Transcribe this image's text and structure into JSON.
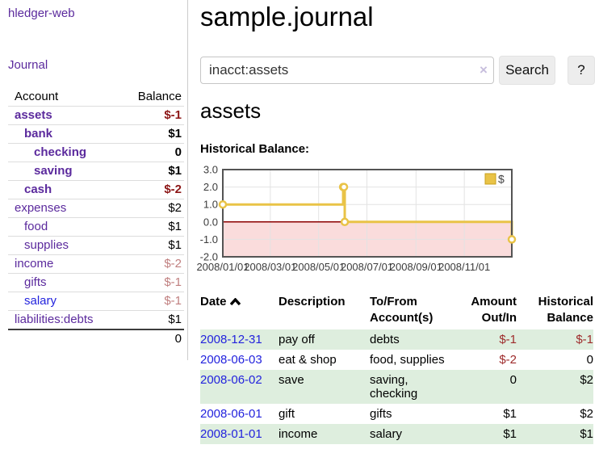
{
  "colors": {
    "accent_purple": "#5b2a9d",
    "link_blue": "#2323dd",
    "negative_strong": "#8c1616",
    "negative_muted": "#c07f7f",
    "negative": "#9e2b2b",
    "row_green": "#deeede",
    "chart_line": "#e9c347",
    "chart_marker_fill": "#ffffff",
    "chart_negative_region": "#fadcdc",
    "chart_zero_line": "#8b0000",
    "chart_border": "#545454",
    "chart_grid": "#e3e3e3",
    "legend_swatch_border": "#c9a21e"
  },
  "sidebar": {
    "brand": "hledger-web",
    "journal_link": "Journal",
    "accounts_table": {
      "headers": {
        "account": "Account",
        "balance": "Balance"
      },
      "rows": [
        {
          "name": "assets",
          "balance": "$-1"
        },
        {
          "name": "bank",
          "balance": "$1"
        },
        {
          "name": "checking",
          "balance": "0"
        },
        {
          "name": "saving",
          "balance": "$1"
        },
        {
          "name": "cash",
          "balance": "$-2"
        },
        {
          "name": "expenses",
          "balance": "$2"
        },
        {
          "name": "food",
          "balance": "$1"
        },
        {
          "name": "supplies",
          "balance": "$1"
        },
        {
          "name": "income",
          "balance": "$-2"
        },
        {
          "name": "gifts",
          "balance": "$-1"
        },
        {
          "name": "salary",
          "balance": "$-1"
        },
        {
          "name": "liabilities:debts",
          "balance": "$1"
        }
      ],
      "total": "0"
    }
  },
  "header": {
    "title": "sample.journal"
  },
  "search": {
    "query": "inacct:assets",
    "clear_icon": "×",
    "button_label": "Search",
    "help_label": "?"
  },
  "account_page": {
    "heading": "assets",
    "chart_label": "Historical Balance:"
  },
  "chart_data": {
    "type": "line",
    "step": true,
    "title": "Historical Balance",
    "legend": {
      "label": "$",
      "position": "top-right"
    },
    "ylim": [
      -2.0,
      3.0
    ],
    "y_ticks": [
      3.0,
      2.0,
      1.0,
      0.0,
      -1.0,
      -2.0
    ],
    "x_range_days": [
      0,
      365
    ],
    "x_ticks": [
      {
        "day": 0,
        "label": "2008/01/01"
      },
      {
        "day": 60,
        "label": "2008/03/01"
      },
      {
        "day": 121,
        "label": "2008/05/01"
      },
      {
        "day": 182,
        "label": "2008/07/01"
      },
      {
        "day": 244,
        "label": "2008/09/01"
      },
      {
        "day": 305,
        "label": "2008/11/01"
      }
    ],
    "series": [
      {
        "name": "$",
        "points": [
          {
            "date": "2008-01-01",
            "day": 0,
            "value": 1
          },
          {
            "date": "2008-06-01",
            "day": 152,
            "value": 2
          },
          {
            "date": "2008-06-02",
            "day": 153,
            "value": 2
          },
          {
            "date": "2008-06-03",
            "day": 154,
            "value": 0
          },
          {
            "date": "2008-12-31",
            "day": 365,
            "value": -1
          }
        ]
      }
    ],
    "negative_region_shaded": true,
    "grid": true
  },
  "register": {
    "headers": {
      "date": "Date",
      "description": "Description",
      "accounts": "To/From Account(s)",
      "amount": "Amount Out/In",
      "balance": "Historical Balance"
    },
    "sort_icon": "chevron-up",
    "rows": [
      {
        "date": "2008-12-31",
        "description": "pay off",
        "accounts": "debts",
        "amount": "$-1",
        "balance": "$-1"
      },
      {
        "date": "2008-06-03",
        "description": "eat & shop",
        "accounts": "food, supplies",
        "amount": "$-2",
        "balance": "0"
      },
      {
        "date": "2008-06-02",
        "description": "save",
        "accounts": "saving, checking",
        "amount": "0",
        "balance": "$2"
      },
      {
        "date": "2008-06-01",
        "description": "gift",
        "accounts": "gifts",
        "amount": "$1",
        "balance": "$2"
      },
      {
        "date": "2008-01-01",
        "description": "income",
        "accounts": "salary",
        "amount": "$1",
        "balance": "$1"
      }
    ]
  }
}
